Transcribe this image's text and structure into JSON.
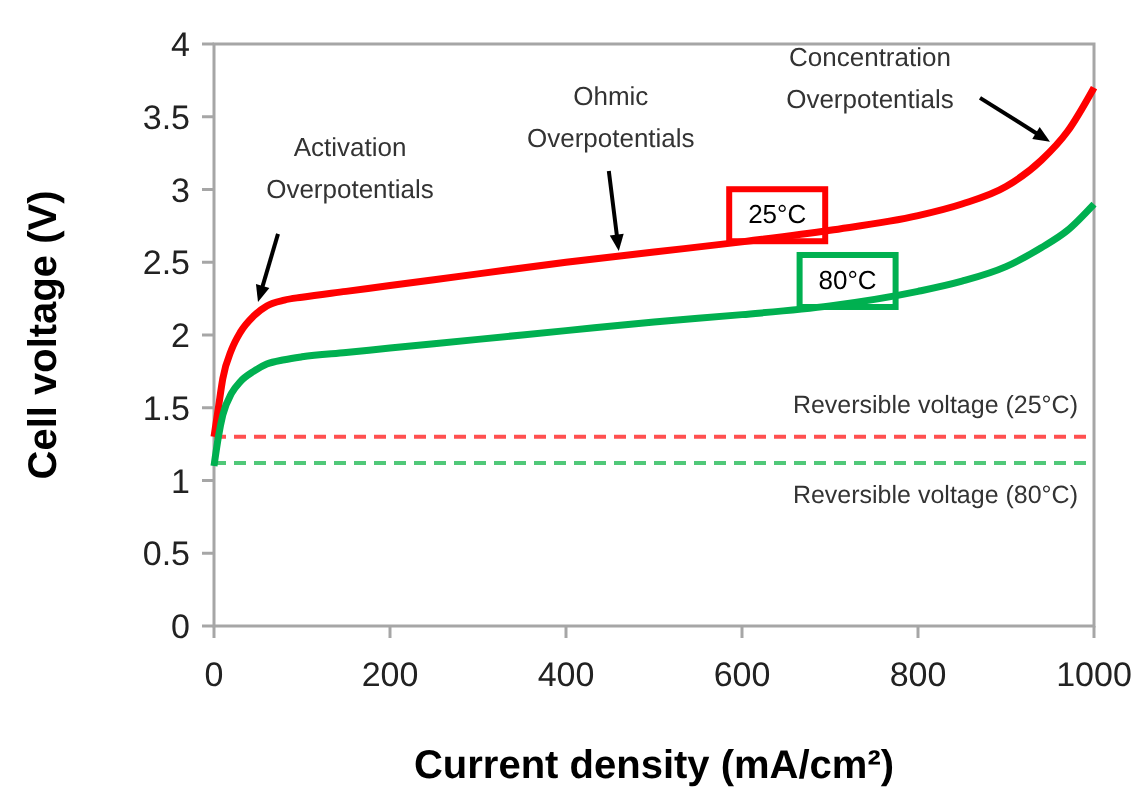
{
  "chart_data": {
    "type": "line",
    "xlabel": "Current density (mA/cm²)",
    "ylabel": "Cell voltage (V)",
    "x": [
      0,
      5,
      10,
      20,
      30,
      45,
      60,
      80,
      100,
      150,
      200,
      300,
      400,
      500,
      600,
      700,
      800,
      850,
      900,
      940,
      970,
      1000
    ],
    "series": [
      {
        "name": "25°C",
        "color": "#ff0000",
        "values": [
          1.3,
          1.5,
          1.7,
          1.9,
          2.02,
          2.13,
          2.2,
          2.24,
          2.26,
          2.3,
          2.34,
          2.42,
          2.5,
          2.57,
          2.64,
          2.72,
          2.82,
          2.9,
          3.02,
          3.2,
          3.4,
          3.7
        ]
      },
      {
        "name": "80°C",
        "color": "#00b050",
        "values": [
          1.1,
          1.3,
          1.45,
          1.6,
          1.68,
          1.75,
          1.8,
          1.83,
          1.85,
          1.88,
          1.91,
          1.97,
          2.03,
          2.09,
          2.14,
          2.2,
          2.3,
          2.37,
          2.47,
          2.6,
          2.72,
          2.9
        ]
      }
    ],
    "xlim": [
      0,
      1000
    ],
    "xticks": [
      0,
      200,
      400,
      600,
      800,
      1000
    ],
    "ylim": [
      0,
      4
    ],
    "yticks": [
      0,
      0.5,
      1,
      1.5,
      2,
      2.5,
      3,
      3.5,
      4
    ],
    "ref_lines": [
      {
        "axis": "y",
        "value": 1.3,
        "label": "Reversible voltage (25°C)",
        "color": "#ff5050",
        "line_style": "dashed"
      },
      {
        "axis": "y",
        "value": 1.12,
        "label": "Reversible voltage (80°C)",
        "color": "#50c878",
        "line_style": "dashed"
      }
    ],
    "annotations": [
      {
        "text": "Activation\nOverpotentials",
        "x": 50,
        "y": 2.2
      },
      {
        "text": "Ohmic\nOverpotentials",
        "x": 460,
        "y": 2.55
      },
      {
        "text": "Concentration\nOverpotentials",
        "x": 950,
        "y": 3.3
      }
    ],
    "grid": false,
    "legend": false,
    "marker": "none",
    "line_style": "solid"
  }
}
